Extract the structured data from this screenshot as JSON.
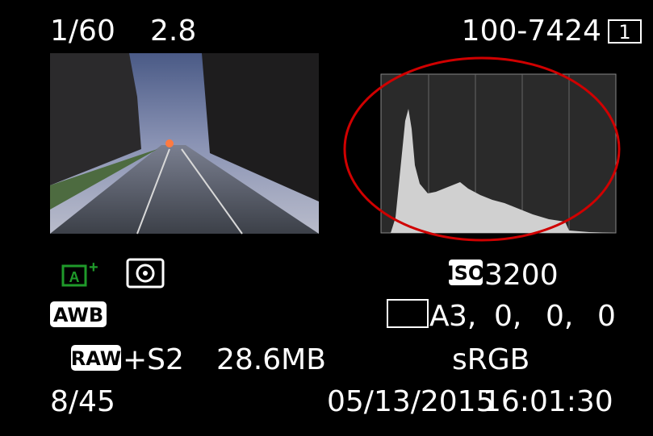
{
  "exposure": {
    "shutter": "1/60",
    "aperture": "2.8"
  },
  "file_number": "100-7424",
  "card_slot": "1",
  "iso_label": "ISO",
  "iso": "3200",
  "white_balance": "AWB",
  "wb_shift_label": "A",
  "wb_shift": [
    "3,",
    "0,",
    "0,",
    "0"
  ],
  "quality": {
    "raw": "RAW",
    "size": "+S2"
  },
  "file_size": "28.6MB",
  "color_space": "sRGB",
  "image_index": "8/45",
  "date": "05/13/2015",
  "time": "16:01:30"
}
